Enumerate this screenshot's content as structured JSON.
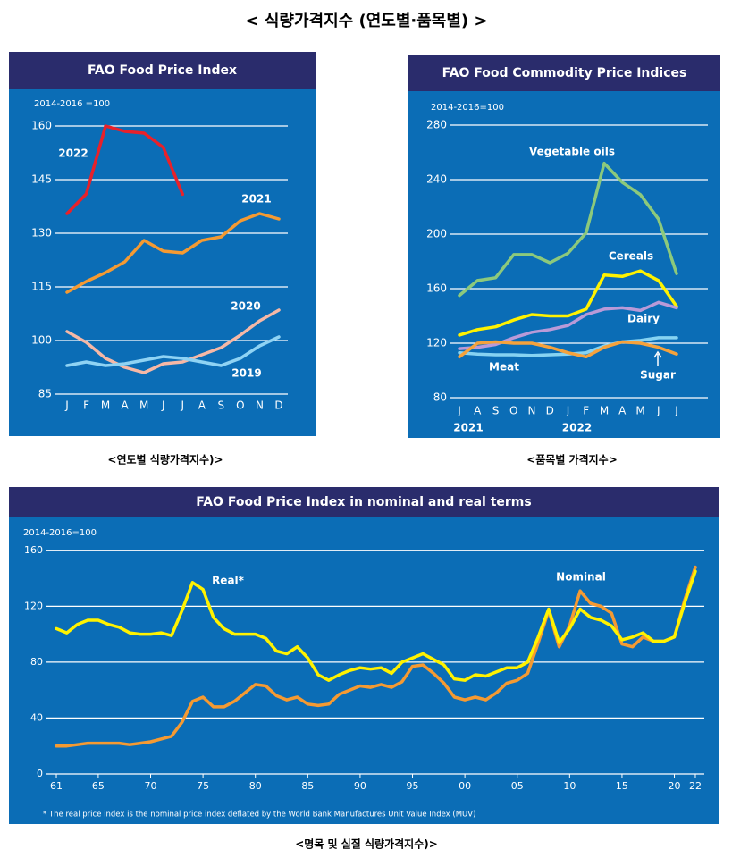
{
  "title": "< 식량가격지수 (연도별·품목별) >",
  "chart_data": [
    {
      "type": "line",
      "title": "FAO Food Price Index",
      "y_unit": "2014-2016 =100",
      "caption": "<연도별 식량가격지수)>",
      "categories": [
        "J",
        "F",
        "M",
        "A",
        "M",
        "J",
        "J",
        "A",
        "S",
        "O",
        "N",
        "D"
      ],
      "ylim": [
        85,
        165
      ],
      "yticks": [
        85,
        100,
        115,
        130,
        145,
        160
      ],
      "grid": true,
      "series": [
        {
          "name": "2022",
          "color": "#e8212a",
          "values": [
            135.5,
            141,
            160,
            158.5,
            158,
            154,
            140.9,
            null,
            null,
            null,
            null,
            null
          ]
        },
        {
          "name": "2021",
          "color": "#f59a32",
          "values": [
            113.5,
            116.5,
            119,
            122,
            128,
            125,
            124.5,
            128,
            129,
            133.5,
            135.5,
            134
          ]
        },
        {
          "name": "2020",
          "color": "#f6b8a6",
          "values": [
            102.5,
            99.5,
            95,
            92.5,
            91,
            93.5,
            94,
            96,
            98,
            101.5,
            105.5,
            108.5
          ]
        },
        {
          "name": "2019",
          "color": "#8fd3f4",
          "values": [
            93,
            94,
            93,
            93.5,
            94.5,
            95.5,
            95,
            94,
            93,
            95,
            98.5,
            101
          ]
        }
      ]
    },
    {
      "type": "line",
      "title": "FAO Food Commodity Price Indices",
      "y_unit": "2014-2016=100",
      "caption": "<품목별 가격지수>",
      "categories": [
        "J",
        "A",
        "S",
        "O",
        "N",
        "D",
        "J",
        "F",
        "M",
        "A",
        "M",
        "J",
        "J"
      ],
      "year_labels": [
        "2021",
        "2022"
      ],
      "ylim": [
        80,
        290
      ],
      "yticks": [
        80,
        120,
        160,
        200,
        240,
        280
      ],
      "grid": true,
      "series": [
        {
          "name": "Vegetable oils",
          "color": "#8cc97c",
          "values": [
            155,
            166,
            168,
            185,
            185,
            179,
            186,
            201,
            252,
            238,
            229,
            211,
            171
          ]
        },
        {
          "name": "Cereals",
          "color": "#fff200",
          "values": [
            126,
            130,
            132,
            137,
            141,
            140,
            140,
            145,
            170,
            169,
            173,
            166,
            147
          ]
        },
        {
          "name": "Dairy",
          "color": "#b99ad8",
          "values": [
            116,
            117,
            119,
            124,
            128,
            130,
            133,
            141,
            145,
            146,
            144,
            150,
            146
          ]
        },
        {
          "name": "Meat",
          "color": "#86d3f2",
          "values": [
            113,
            112,
            111.5,
            111.5,
            111,
            111.5,
            112,
            113,
            118,
            121,
            122,
            124,
            124
          ]
        },
        {
          "name": "Sugar",
          "color": "#f5a23c",
          "values": [
            110,
            120,
            121,
            120,
            120,
            117,
            113,
            110,
            117,
            121,
            120,
            117,
            112
          ]
        }
      ]
    },
    {
      "type": "line",
      "title": "FAO Food Price Index in nominal and real terms",
      "y_unit": "2014-2016=100",
      "caption": "<명목 및 실질 식량가격지수)>",
      "footnote": "* The real price index is the nominal price index deflated by the World Bank Manufactures Unit Value Index (MUV)",
      "x": [
        1961,
        1962,
        1963,
        1964,
        1965,
        1966,
        1967,
        1968,
        1969,
        1970,
        1971,
        1972,
        1973,
        1974,
        1975,
        1976,
        1977,
        1978,
        1979,
        1980,
        1981,
        1982,
        1983,
        1984,
        1985,
        1986,
        1987,
        1988,
        1989,
        1990,
        1991,
        1992,
        1993,
        1994,
        1995,
        1996,
        1997,
        1998,
        1999,
        2000,
        2001,
        2002,
        2003,
        2004,
        2005,
        2006,
        2007,
        2008,
        2009,
        2010,
        2011,
        2012,
        2013,
        2014,
        2015,
        2016,
        2017,
        2018,
        2019,
        2020,
        2021,
        2022
      ],
      "xlim": [
        1960,
        2023
      ],
      "xticks": [
        {
          "value": 1961,
          "label": "61"
        },
        {
          "value": 1965,
          "label": "65"
        },
        {
          "value": 1970,
          "label": "70"
        },
        {
          "value": 1975,
          "label": "75"
        },
        {
          "value": 1980,
          "label": "80"
        },
        {
          "value": 1985,
          "label": "85"
        },
        {
          "value": 1990,
          "label": "90"
        },
        {
          "value": 1995,
          "label": "95"
        },
        {
          "value": 2000,
          "label": "00"
        },
        {
          "value": 2005,
          "label": "05"
        },
        {
          "value": 2010,
          "label": "10"
        },
        {
          "value": 2015,
          "label": "15"
        },
        {
          "value": 2020,
          "label": "20"
        },
        {
          "value": 2022,
          "label": "22"
        }
      ],
      "ylim": [
        0,
        165
      ],
      "yticks": [
        0,
        40,
        80,
        120,
        160
      ],
      "grid": true,
      "series": [
        {
          "name": "Nominal",
          "color": "#f59a32",
          "values": [
            20,
            20,
            21,
            22,
            22,
            22,
            22,
            21,
            22,
            23,
            25,
            27,
            37,
            52,
            55,
            48,
            48,
            52,
            58,
            64,
            63,
            56,
            53,
            55,
            50,
            49,
            50,
            57,
            60,
            63,
            62,
            64,
            62,
            66,
            77,
            78,
            72,
            65,
            55,
            53,
            55,
            53,
            58,
            65,
            67,
            72,
            94,
            117,
            91,
            106,
            131,
            122,
            120,
            115,
            93,
            91,
            98,
            95,
            95,
            98,
            125,
            148
          ]
        },
        {
          "name": "Real*",
          "color": "#fff200",
          "values": [
            104,
            101,
            107,
            110,
            110,
            107,
            105,
            101,
            100,
            100,
            101,
            99,
            117,
            137,
            132,
            112,
            104,
            100,
            100,
            100,
            97,
            88,
            86,
            91,
            83,
            71,
            67,
            71,
            74,
            76,
            75,
            76,
            72,
            80,
            83,
            86,
            82,
            78,
            68,
            67,
            71,
            70,
            73,
            76,
            76,
            80,
            98,
            118,
            94,
            104,
            118,
            112,
            110,
            106,
            96,
            98,
            101,
            95,
            95,
            98,
            123,
            145
          ]
        }
      ]
    }
  ]
}
